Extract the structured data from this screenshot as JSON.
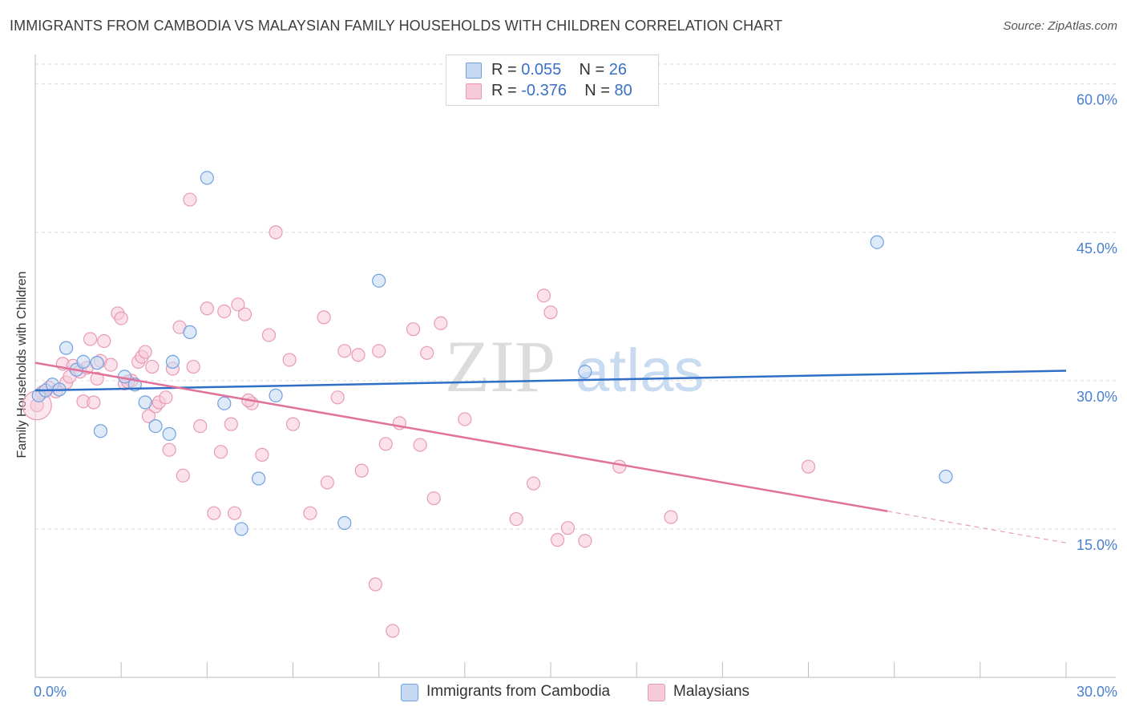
{
  "chart_data": {
    "type": "scatter",
    "title": "IMMIGRANTS FROM CAMBODIA VS MALAYSIAN FAMILY HOUSEHOLDS WITH CHILDREN CORRELATION CHART",
    "source": "Source: ZipAtlas.com",
    "ylabel": "Family Households with Children",
    "xlim": [
      0,
      30
    ],
    "ylim": [
      0,
      62
    ],
    "y_ticks": [
      "60.0%",
      "45.0%",
      "30.0%",
      "15.0%"
    ],
    "y_tick_values": [
      60,
      45,
      30,
      15
    ],
    "x_tick_left": "0.0%",
    "x_tick_right": "30.0%",
    "watermark": {
      "zip": "ZIP",
      "atlas": "atlas"
    },
    "legend": {
      "rows": [
        {
          "r_label": "R =",
          "r_value": "0.055",
          "n_label": "N =",
          "n_value": "26"
        },
        {
          "r_label": "R =",
          "r_value": "-0.376",
          "n_label": "N =",
          "n_value": "80"
        }
      ]
    },
    "series": [
      {
        "name": "Immigrants from Cambodia",
        "color": "#6fa0e0",
        "fill": "#c5d9f3",
        "line_color": "#2f6fc8",
        "trend": {
          "x0": 0,
          "y0": 29.0,
          "x1": 30,
          "y1": 31.0
        },
        "points": [
          [
            0.1,
            28.5
          ],
          [
            0.3,
            29.0
          ],
          [
            0.5,
            29.6
          ],
          [
            0.7,
            29.1
          ],
          [
            0.9,
            33.3
          ],
          [
            1.2,
            31.1
          ],
          [
            1.4,
            31.9
          ],
          [
            1.8,
            31.8
          ],
          [
            2.6,
            30.4
          ],
          [
            2.9,
            29.6
          ],
          [
            3.2,
            27.8
          ],
          [
            3.5,
            25.4
          ],
          [
            3.9,
            24.6
          ],
          [
            4.0,
            31.9
          ],
          [
            4.5,
            34.9
          ],
          [
            5.0,
            50.5
          ],
          [
            5.5,
            27.7
          ],
          [
            6.0,
            15.0
          ],
          [
            6.5,
            20.1
          ],
          [
            7.0,
            28.5
          ],
          [
            9.0,
            15.6
          ],
          [
            10.0,
            40.1
          ],
          [
            16.0,
            30.9
          ],
          [
            24.5,
            44.0
          ],
          [
            26.5,
            20.3
          ],
          [
            1.9,
            24.9
          ]
        ]
      },
      {
        "name": "Malaysians",
        "color": "#e89ab5",
        "fill": "#f7cad9",
        "line_color": "#e0729b",
        "trend": {
          "x0": 0,
          "y0": 31.8,
          "x1": 24.8,
          "y1": 16.8
        },
        "trend_dash": {
          "x0": 24.8,
          "y0": 16.8,
          "x1": 30,
          "y1": 13.6
        },
        "points": [
          [
            0.05,
            27.5
          ],
          [
            0.2,
            28.8
          ],
          [
            0.4,
            29.3
          ],
          [
            0.6,
            28.9
          ],
          [
            0.8,
            31.7
          ],
          [
            0.9,
            29.8
          ],
          [
            1.0,
            30.4
          ],
          [
            1.1,
            31.5
          ],
          [
            1.3,
            30.9
          ],
          [
            1.4,
            27.9
          ],
          [
            1.5,
            31.3
          ],
          [
            1.6,
            34.2
          ],
          [
            1.7,
            27.8
          ],
          [
            1.8,
            30.2
          ],
          [
            1.9,
            32.0
          ],
          [
            2.0,
            34.0
          ],
          [
            2.2,
            31.6
          ],
          [
            2.4,
            36.8
          ],
          [
            2.5,
            36.3
          ],
          [
            2.6,
            29.7
          ],
          [
            2.8,
            30.0
          ],
          [
            3.0,
            31.9
          ],
          [
            3.1,
            32.4
          ],
          [
            3.2,
            32.9
          ],
          [
            3.3,
            26.4
          ],
          [
            3.4,
            31.4
          ],
          [
            3.5,
            27.4
          ],
          [
            3.6,
            27.8
          ],
          [
            3.8,
            28.3
          ],
          [
            3.9,
            23.0
          ],
          [
            4.0,
            31.2
          ],
          [
            4.2,
            35.4
          ],
          [
            4.3,
            20.4
          ],
          [
            4.5,
            48.3
          ],
          [
            4.6,
            31.4
          ],
          [
            4.8,
            25.4
          ],
          [
            5.0,
            37.3
          ],
          [
            5.2,
            16.6
          ],
          [
            5.4,
            22.8
          ],
          [
            5.5,
            37.0
          ],
          [
            5.7,
            25.6
          ],
          [
            5.8,
            16.6
          ],
          [
            5.9,
            37.7
          ],
          [
            6.1,
            36.7
          ],
          [
            6.3,
            27.7
          ],
          [
            6.6,
            22.5
          ],
          [
            6.8,
            34.6
          ],
          [
            7.0,
            45.0
          ],
          [
            7.4,
            32.1
          ],
          [
            7.5,
            25.6
          ],
          [
            8.0,
            16.6
          ],
          [
            8.4,
            36.4
          ],
          [
            8.5,
            19.7
          ],
          [
            8.8,
            28.3
          ],
          [
            9.0,
            33.0
          ],
          [
            9.4,
            32.6
          ],
          [
            9.5,
            20.9
          ],
          [
            9.9,
            9.4
          ],
          [
            10.0,
            33.0
          ],
          [
            10.2,
            23.6
          ],
          [
            10.4,
            4.7
          ],
          [
            10.6,
            25.7
          ],
          [
            11.0,
            35.2
          ],
          [
            11.2,
            23.5
          ],
          [
            11.4,
            32.8
          ],
          [
            11.6,
            18.1
          ],
          [
            11.8,
            35.8
          ],
          [
            12.5,
            26.1
          ],
          [
            14.0,
            16.0
          ],
          [
            14.5,
            19.6
          ],
          [
            14.8,
            38.6
          ],
          [
            15.0,
            36.9
          ],
          [
            15.2,
            13.9
          ],
          [
            15.5,
            15.1
          ],
          [
            16.0,
            13.8
          ],
          [
            17.0,
            21.3
          ],
          [
            18.5,
            16.2
          ],
          [
            22.5,
            21.3
          ],
          [
            2.7,
            29.9
          ],
          [
            6.2,
            28.0
          ]
        ]
      }
    ]
  }
}
